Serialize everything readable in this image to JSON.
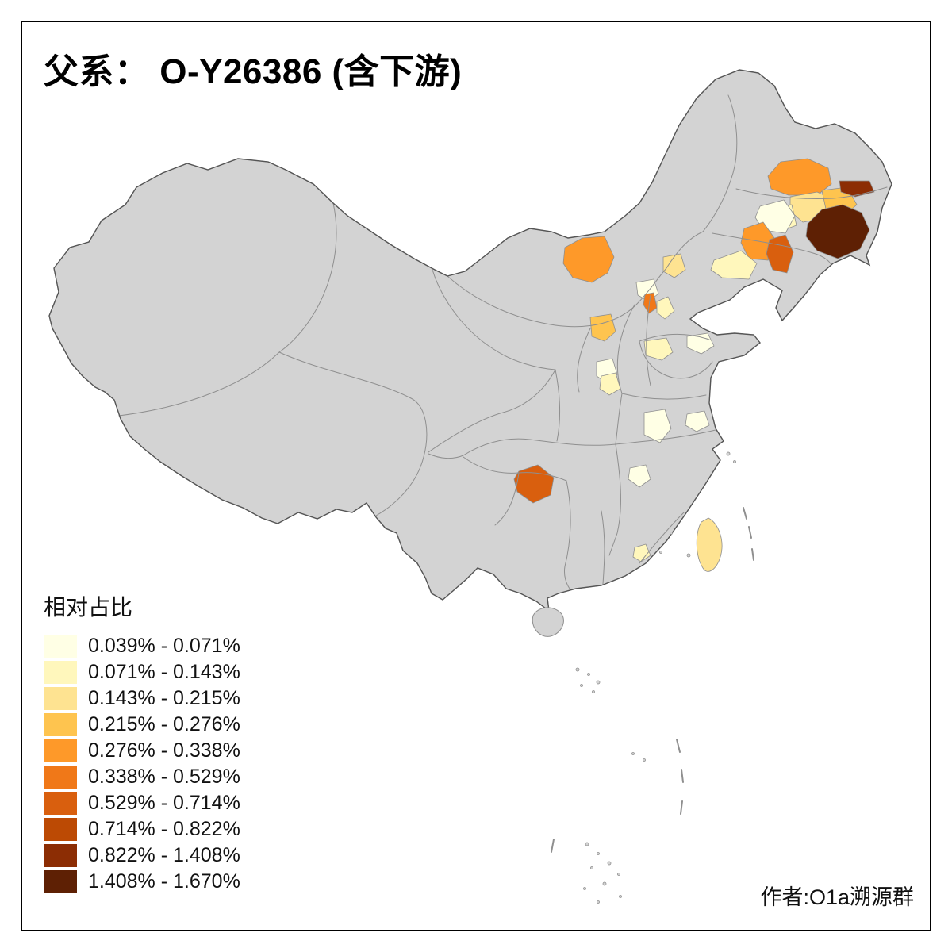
{
  "title": "父系： O-Y26386 (含下游)",
  "legend": {
    "title": "相对占比",
    "bins": [
      {
        "label": "0.039% - 0.071%",
        "color": "#FFFFE5"
      },
      {
        "label": "0.071% - 0.143%",
        "color": "#FFF7BC"
      },
      {
        "label": "0.143% - 0.215%",
        "color": "#FEE391"
      },
      {
        "label": "0.215% - 0.276%",
        "color": "#FEC44F"
      },
      {
        "label": "0.276% - 0.338%",
        "color": "#FE9929"
      },
      {
        "label": "0.338% - 0.529%",
        "color": "#F07818"
      },
      {
        "label": "0.529% - 0.714%",
        "color": "#D95F0E"
      },
      {
        "label": "0.714% - 0.822%",
        "color": "#BC4A04"
      },
      {
        "label": "0.822% - 1.408%",
        "color": "#8C2D04"
      },
      {
        "label": "1.408% - 1.670%",
        "color": "#5E2004"
      }
    ]
  },
  "credits": {
    "author": "作者:O1a溯源群"
  },
  "map": {
    "base_fill": "#D3D3D3",
    "boundary_color": "#8F8F8F",
    "outline_color": "#555555",
    "background": "#FFFFFF"
  },
  "chart_data": {
    "type": "heatmap",
    "subtype": "choropleth-map",
    "geography": "China, prefecture level",
    "title": "父系： O-Y26386 (含下游)",
    "legend_title": "相对占比",
    "unit": "%",
    "breaks": [
      0.039,
      0.071,
      0.143,
      0.215,
      0.276,
      0.338,
      0.529,
      0.714,
      0.822,
      1.408,
      1.67
    ],
    "class_labels": [
      "0.039% - 0.071%",
      "0.071% - 0.143%",
      "0.143% - 0.215%",
      "0.215% - 0.276%",
      "0.276% - 0.338%",
      "0.338% - 0.529%",
      "0.529% - 0.714%",
      "0.714% - 0.822%",
      "0.822% - 1.408%",
      "1.408% - 1.670%"
    ],
    "note": "bin is the 1-based index into legend.bins; region ids describe approximate location only (no names shown in image)",
    "regions": [
      {
        "id": "neimenggu-west",
        "bin": 5
      },
      {
        "id": "heilongjiang-nw",
        "bin": 5
      },
      {
        "id": "heilongjiang-central",
        "bin": 3
      },
      {
        "id": "heilongjiang-central-2",
        "bin": 2
      },
      {
        "id": "heilongjiang-east",
        "bin": 4
      },
      {
        "id": "heilongjiang-ne-strip",
        "bin": 9
      },
      {
        "id": "jilin-east",
        "bin": 10
      },
      {
        "id": "jilin-north",
        "bin": 1
      },
      {
        "id": "jilin-west",
        "bin": 5
      },
      {
        "id": "liaoning-east",
        "bin": 7
      },
      {
        "id": "liaoning-west",
        "bin": 2
      },
      {
        "id": "hebei-ne",
        "bin": 3
      },
      {
        "id": "beijing-nw",
        "bin": 1
      },
      {
        "id": "beijing-urban",
        "bin": 6
      },
      {
        "id": "tianjin",
        "bin": 2
      },
      {
        "id": "hebei-south",
        "bin": 4
      },
      {
        "id": "shanxi-south",
        "bin": 1
      },
      {
        "id": "shanxi-south-2",
        "bin": 2
      },
      {
        "id": "shandong-west",
        "bin": 2
      },
      {
        "id": "shandong-east",
        "bin": 1
      },
      {
        "id": "henan-east",
        "bin": 1
      },
      {
        "id": "anhui-north",
        "bin": 1
      },
      {
        "id": "hubei-central",
        "bin": 1
      },
      {
        "id": "guizhou-central",
        "bin": 7
      },
      {
        "id": "fujian-coast",
        "bin": 2
      },
      {
        "id": "taiwan",
        "bin": 3
      }
    ]
  }
}
